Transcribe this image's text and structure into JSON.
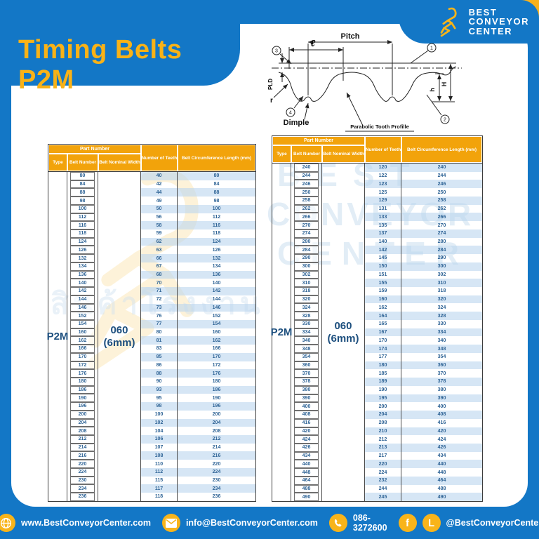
{
  "title": "Timing Belts P2M",
  "logo": {
    "lines": [
      "BEST",
      "CONVEYOR",
      "CENTER"
    ]
  },
  "diagram": {
    "pitch": "Pitch",
    "l_symbol": "ℓ",
    "pld": "PLD",
    "r": "r",
    "dimple": "Dimple",
    "parabolic": "Parabolic Tooth Profille",
    "h_small": "h",
    "h_big": "H",
    "callout_1": "1",
    "callout_2": "2",
    "callout_3": "3",
    "callout_4": "4"
  },
  "table_header": {
    "part_number": "Part Number",
    "type": "Type",
    "belt_number": "Belt Number",
    "belt_nominal_width": "Belt Nominal Width",
    "number_of_teeth": "Number of Teeth",
    "belt_circumference": "Belt Circumference Length (mm)"
  },
  "tables": [
    {
      "type": "P2M",
      "width_lines": [
        "060",
        "(6mm)"
      ],
      "rows": [
        [
          80,
          40,
          80
        ],
        [
          84,
          42,
          84
        ],
        [
          88,
          44,
          88
        ],
        [
          98,
          49,
          98
        ],
        [
          100,
          50,
          100
        ],
        [
          112,
          56,
          112
        ],
        [
          116,
          58,
          116
        ],
        [
          118,
          59,
          118
        ],
        [
          124,
          62,
          124
        ],
        [
          126,
          63,
          126
        ],
        [
          132,
          66,
          132
        ],
        [
          134,
          67,
          134
        ],
        [
          136,
          68,
          136
        ],
        [
          140,
          70,
          140
        ],
        [
          142,
          71,
          142
        ],
        [
          144,
          72,
          144
        ],
        [
          146,
          73,
          146
        ],
        [
          152,
          76,
          152
        ],
        [
          154,
          77,
          154
        ],
        [
          160,
          80,
          160
        ],
        [
          162,
          81,
          162
        ],
        [
          166,
          83,
          166
        ],
        [
          170,
          85,
          170
        ],
        [
          172,
          86,
          172
        ],
        [
          176,
          88,
          176
        ],
        [
          180,
          90,
          180
        ],
        [
          186,
          93,
          186
        ],
        [
          190,
          95,
          190
        ],
        [
          196,
          98,
          196
        ],
        [
          200,
          100,
          200
        ],
        [
          204,
          102,
          204
        ],
        [
          208,
          104,
          208
        ],
        [
          212,
          106,
          212
        ],
        [
          214,
          107,
          214
        ],
        [
          216,
          108,
          216
        ],
        [
          220,
          110,
          220
        ],
        [
          224,
          112,
          224
        ],
        [
          230,
          115,
          230
        ],
        [
          234,
          117,
          234
        ],
        [
          236,
          118,
          236
        ]
      ]
    },
    {
      "type": "P2M",
      "width_lines": [
        "060",
        "(6mm)"
      ],
      "rows": [
        [
          240,
          120,
          240
        ],
        [
          244,
          122,
          244
        ],
        [
          246,
          123,
          246
        ],
        [
          250,
          125,
          250
        ],
        [
          258,
          129,
          258
        ],
        [
          262,
          131,
          262
        ],
        [
          266,
          133,
          266
        ],
        [
          270,
          135,
          270
        ],
        [
          274,
          137,
          274
        ],
        [
          280,
          140,
          280
        ],
        [
          284,
          142,
          284
        ],
        [
          290,
          145,
          290
        ],
        [
          300,
          150,
          300
        ],
        [
          302,
          151,
          302
        ],
        [
          310,
          155,
          310
        ],
        [
          318,
          159,
          318
        ],
        [
          320,
          160,
          320
        ],
        [
          324,
          162,
          324
        ],
        [
          328,
          164,
          328
        ],
        [
          330,
          165,
          330
        ],
        [
          334,
          167,
          334
        ],
        [
          340,
          170,
          340
        ],
        [
          348,
          174,
          348
        ],
        [
          354,
          177,
          354
        ],
        [
          360,
          180,
          360
        ],
        [
          370,
          185,
          370
        ],
        [
          378,
          189,
          378
        ],
        [
          380,
          190,
          380
        ],
        [
          390,
          195,
          390
        ],
        [
          400,
          200,
          400
        ],
        [
          408,
          204,
          408
        ],
        [
          416,
          208,
          416
        ],
        [
          420,
          210,
          420
        ],
        [
          424,
          212,
          424
        ],
        [
          426,
          213,
          426
        ],
        [
          434,
          217,
          434
        ],
        [
          440,
          220,
          440
        ],
        [
          448,
          224,
          448
        ],
        [
          464,
          232,
          464
        ],
        [
          488,
          244,
          488
        ],
        [
          490,
          245,
          490
        ]
      ]
    }
  ],
  "watermark": {
    "line1": "BEST",
    "line2": "CONVEYOR",
    "line3": "CENTER",
    "thai_text": "สินค้าโรงงาน"
  },
  "footer": {
    "website": "www.BestConveyorCenter.com",
    "email": "info@BestConveyorCenter.com",
    "phone": "086-3272600",
    "social": "@BestConveyorCenter",
    "facebook_glyph": "f",
    "line_glyph": "L"
  },
  "colors": {
    "blue": "#1377C6",
    "yellow": "#F8B11C",
    "header_orange": "#F2A30B",
    "title_yellow": "#F9B217",
    "table_text": "#2f6496",
    "navy": "#1d4f7e"
  }
}
